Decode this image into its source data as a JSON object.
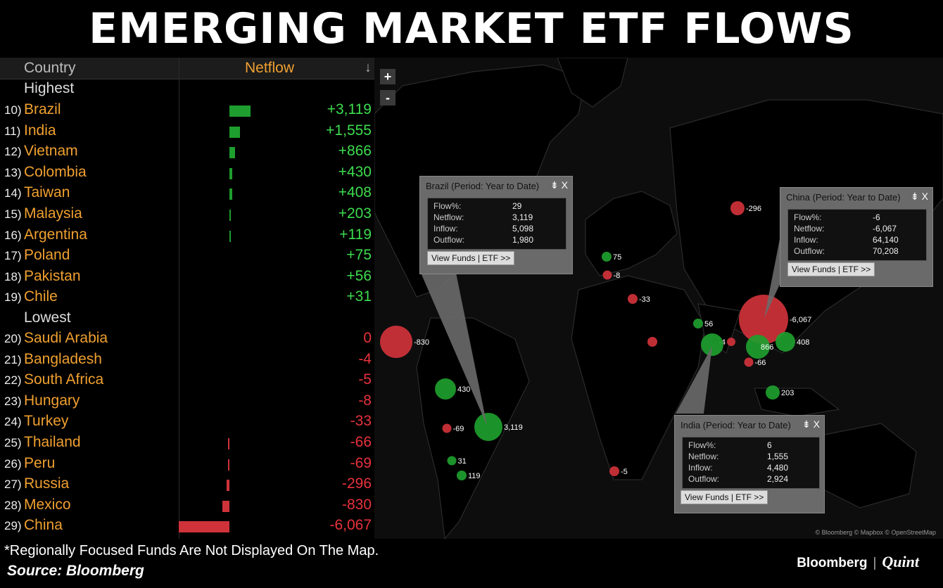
{
  "title": "EMERGING MARKET ETF FLOWS",
  "table": {
    "col_country": "Country",
    "col_netflow": "Netflow",
    "sort_icon": "↓",
    "highest_label": "Highest",
    "lowest_label": "Lowest"
  },
  "chart_data": {
    "type": "bar",
    "title": "EMERGING MARKET ETF FLOWS",
    "xlabel": "Country",
    "ylabel": "Netflow",
    "highest": [
      {
        "rank": "10)",
        "country": "Brazil",
        "value": 3119,
        "label": "+3,119"
      },
      {
        "rank": "11)",
        "country": "India",
        "value": 1555,
        "label": "+1,555"
      },
      {
        "rank": "12)",
        "country": "Vietnam",
        "value": 866,
        "label": "+866"
      },
      {
        "rank": "13)",
        "country": "Colombia",
        "value": 430,
        "label": "+430"
      },
      {
        "rank": "14)",
        "country": "Taiwan",
        "value": 408,
        "label": "+408"
      },
      {
        "rank": "15)",
        "country": "Malaysia",
        "value": 203,
        "label": "+203"
      },
      {
        "rank": "16)",
        "country": "Argentina",
        "value": 119,
        "label": "+119"
      },
      {
        "rank": "17)",
        "country": "Poland",
        "value": 75,
        "label": "+75"
      },
      {
        "rank": "18)",
        "country": "Pakistan",
        "value": 56,
        "label": "+56"
      },
      {
        "rank": "19)",
        "country": "Chile",
        "value": 31,
        "label": "+31"
      }
    ],
    "lowest": [
      {
        "rank": "20)",
        "country": "Saudi Arabia",
        "value": 0,
        "label": "0"
      },
      {
        "rank": "21)",
        "country": "Bangladesh",
        "value": -4,
        "label": "-4"
      },
      {
        "rank": "22)",
        "country": "South Africa",
        "value": -5,
        "label": "-5"
      },
      {
        "rank": "23)",
        "country": "Hungary",
        "value": -8,
        "label": "-8"
      },
      {
        "rank": "24)",
        "country": "Turkey",
        "value": -33,
        "label": "-33"
      },
      {
        "rank": "25)",
        "country": "Thailand",
        "value": -66,
        "label": "-66"
      },
      {
        "rank": "26)",
        "country": "Peru",
        "value": -69,
        "label": "-69"
      },
      {
        "rank": "27)",
        "country": "Russia",
        "value": -296,
        "label": "-296"
      },
      {
        "rank": "28)",
        "country": "Mexico",
        "value": -830,
        "label": "-830"
      },
      {
        "rank": "29)",
        "country": "China",
        "value": -6067,
        "label": "-6,067"
      }
    ]
  },
  "map": {
    "zoom_in": "+",
    "zoom_out": "-",
    "bubbles": [
      {
        "label": "3,119",
        "value": 3119
      },
      {
        "label": "430",
        "value": 430
      },
      {
        "label": "-69",
        "value": -69
      },
      {
        "label": "31",
        "value": 31
      },
      {
        "label": "119",
        "value": 119
      },
      {
        "label": "-830",
        "value": -830
      },
      {
        "label": "75",
        "value": 75
      },
      {
        "label": "-8",
        "value": -8
      },
      {
        "label": "-33",
        "value": -33
      },
      {
        "label": "-296",
        "value": -296
      },
      {
        "label": "56",
        "value": 56
      },
      {
        "label": "-4",
        "value": -4
      },
      {
        "label": "-6,067",
        "value": -6067
      },
      {
        "label": "866",
        "value": 866
      },
      {
        "label": "408",
        "value": 408
      },
      {
        "label": "-66",
        "value": -66
      },
      {
        "label": "203",
        "value": 203
      },
      {
        "label": "-5",
        "value": -5
      },
      {
        "label": "",
        "value": 1555
      },
      {
        "label": "",
        "value": 0
      }
    ],
    "popups": {
      "brazil": {
        "title": "Brazil (Period: Year to Date)",
        "flow_label": "Flow%:",
        "flow": "29",
        "netflow_label": "Netflow:",
        "netflow": "3,119",
        "inflow_label": "Inflow:",
        "inflow": "5,098",
        "outflow_label": "Outflow:",
        "outflow": "1,980",
        "button": "View Funds | ETF >>"
      },
      "china": {
        "title": "China (Period: Year to Date)",
        "flow_label": "Flow%:",
        "flow": "-6",
        "netflow_label": "Netflow:",
        "netflow": "-6,067",
        "inflow_label": "Inflow:",
        "inflow": "64,140",
        "outflow_label": "Outflow:",
        "outflow": "70,208",
        "button": "View Funds | ETF >>"
      },
      "india": {
        "title": "India (Period: Year to Date)",
        "flow_label": "Flow%:",
        "flow": "6",
        "netflow_label": "Netflow:",
        "netflow": "1,555",
        "inflow_label": "Inflow:",
        "inflow": "4,480",
        "outflow_label": "Outflow:",
        "outflow": "2,924",
        "button": "View Funds | ETF >>"
      }
    },
    "popup_ctrl": "⇟ X",
    "attribution": "© Bloomberg © Mapbox © OpenStreetMap"
  },
  "footer": {
    "footnote": "*Regionally Focused Funds Are Not Displayed On The Map.",
    "source": "Source: Bloomberg",
    "logo_bloomberg": "Bloomberg",
    "logo_sep": "|",
    "logo_quint": "Quint"
  },
  "colors": {
    "positive": "#1e9e2e",
    "negative": "#d0323a",
    "accent": "#f0a030"
  }
}
